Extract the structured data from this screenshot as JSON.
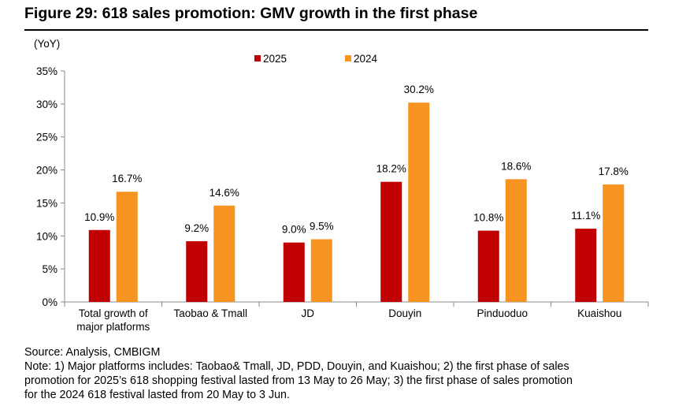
{
  "title": "Figure 29: 618 sales promotion: GMV growth in the first phase",
  "chart_data": {
    "type": "bar",
    "y_unit_label": "(YoY)",
    "categories": [
      [
        "Total growth of",
        "major platforms"
      ],
      [
        "Taobao & Tmall"
      ],
      [
        "JD"
      ],
      [
        "Douyin"
      ],
      [
        "Pinduoduo"
      ],
      [
        "Kuaishou"
      ]
    ],
    "series": [
      {
        "name": "2025",
        "color": "#C00000",
        "values": [
          10.9,
          9.2,
          9.0,
          18.2,
          10.8,
          11.1
        ],
        "labels": [
          "10.9%",
          "9.2%",
          "9.0%",
          "18.2%",
          "10.8%",
          "11.1%"
        ]
      },
      {
        "name": "2024",
        "color": "#F79320",
        "values": [
          16.7,
          14.6,
          9.5,
          30.2,
          18.6,
          17.8
        ],
        "labels": [
          "16.7%",
          "14.6%",
          "9.5%",
          "30.2%",
          "18.6%",
          "17.8%"
        ]
      }
    ],
    "ylim": [
      0,
      35
    ],
    "yticks": [
      0,
      5,
      10,
      15,
      20,
      25,
      30,
      35
    ],
    "ytick_labels": [
      "0%",
      "5%",
      "10%",
      "15%",
      "20%",
      "25%",
      "30%",
      "35%"
    ],
    "grid": false,
    "legend": "top-center"
  },
  "footer": {
    "source": "Source: Analysis, CMBIGM",
    "note_lines": [
      "Note: 1) Major platforms includes: Taobao& Tmall, JD, PDD, Douyin, and Kuaishou; 2) the first phase of sales",
      "promotion for 2025’s 618 shopping festival lasted from 13 May to 26 May; 3) the first phase of sales promotion",
      "for the 2024 618 festival lasted from 20 May to 3 Jun."
    ]
  }
}
